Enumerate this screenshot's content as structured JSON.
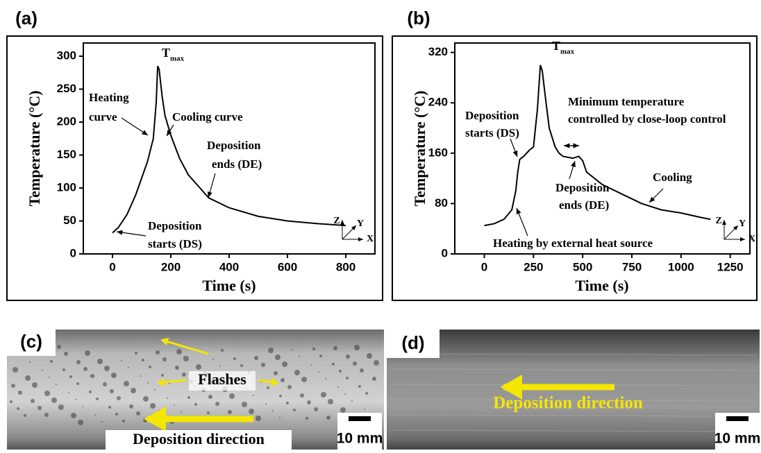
{
  "chart_data": [
    {
      "type": "line",
      "panel_label": "(a)",
      "xlabel": "Time (s)",
      "ylabel": "Temperature (°C)",
      "color": "#000000",
      "x": [
        0,
        20,
        50,
        80,
        100,
        120,
        140,
        150,
        155,
        160,
        170,
        180,
        200,
        230,
        260,
        300,
        330,
        400,
        500,
        600,
        700,
        800
      ],
      "values": [
        32,
        40,
        60,
        90,
        115,
        140,
        175,
        230,
        285,
        280,
        240,
        210,
        180,
        145,
        120,
        100,
        85,
        70,
        57,
        50,
        46,
        43
      ],
      "xlim": [
        -100,
        900
      ],
      "xticks": [
        0,
        200,
        400,
        600,
        800
      ],
      "ylim": [
        0,
        320
      ],
      "yticks": [
        0,
        50,
        100,
        150,
        200,
        250,
        300
      ],
      "peak_label": {
        "main": "T",
        "sub": "max"
      },
      "annotations": [
        {
          "lines": [
            "Heating",
            "curve"
          ]
        },
        {
          "lines": [
            "Cooling curve"
          ]
        },
        {
          "lines": [
            "Deposition",
            "ends (DE)"
          ]
        },
        {
          "lines": [
            "Deposition",
            "starts (DS)"
          ]
        }
      ],
      "axes_triad": [
        "Z",
        "Y",
        "X"
      ]
    },
    {
      "type": "line",
      "panel_label": "(b)",
      "xlabel": "Time (s)",
      "ylabel": "Temperature (°C)",
      "color": "#000000",
      "x": [
        0,
        50,
        100,
        140,
        160,
        170,
        180,
        200,
        230,
        250,
        270,
        285,
        295,
        310,
        330,
        360,
        380,
        400,
        450,
        480,
        500,
        520,
        600,
        700,
        800,
        900,
        1000,
        1100,
        1150
      ],
      "values": [
        45,
        48,
        55,
        70,
        100,
        130,
        150,
        155,
        165,
        170,
        230,
        300,
        290,
        250,
        200,
        170,
        160,
        155,
        152,
        155,
        148,
        130,
        110,
        95,
        80,
        70,
        65,
        58,
        55
      ],
      "xlim": [
        -150,
        1350
      ],
      "xticks": [
        0,
        250,
        500,
        750,
        1000,
        1250
      ],
      "ylim": [
        0,
        335
      ],
      "yticks": [
        0,
        80,
        160,
        240,
        320
      ],
      "peak_label": {
        "main": "T",
        "sub": "max"
      },
      "annotations": [
        {
          "lines": [
            "Deposition",
            "starts (DS)"
          ]
        },
        {
          "lines": [
            "Minimum temperature",
            "controlled by close-loop control"
          ]
        },
        {
          "lines": [
            "Deposition",
            "ends (DE)"
          ]
        },
        {
          "lines": [
            "Cooling"
          ]
        },
        {
          "lines": [
            "Heating by external heat source"
          ]
        }
      ],
      "axes_triad": [
        "Z",
        "Y",
        "X"
      ]
    }
  ],
  "photos": [
    {
      "label": "(c)",
      "annotations": [
        "Flashes",
        "Deposition direction"
      ],
      "scale_bar": "10 mm"
    },
    {
      "label": "(d)",
      "annotations": [
        "Deposition direction"
      ],
      "scale_bar": "10 mm"
    }
  ]
}
